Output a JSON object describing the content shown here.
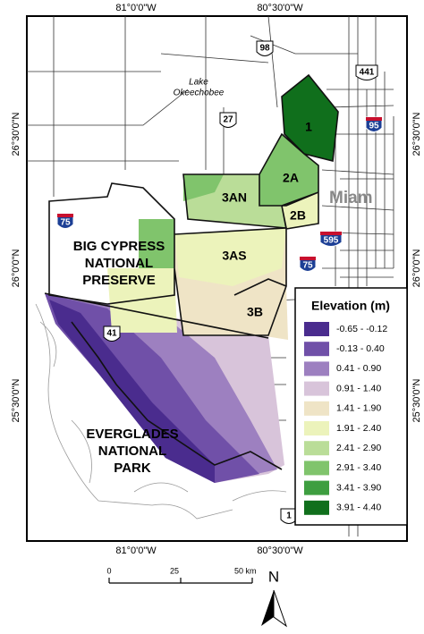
{
  "map": {
    "lon_labels": [
      "81°0'0\"W",
      "80°30'0\"W"
    ],
    "lat_labels": [
      "26°30'0\"N",
      "26°0'0\"N",
      "25°30'0\"N"
    ],
    "lake": [
      "Lake",
      "Okeechobee"
    ],
    "city": "Miam",
    "areas": [
      "1",
      "2A",
      "2B",
      "3AN",
      "3AS",
      "3B"
    ],
    "preserve": [
      "BIG CYPRESS",
      "NATIONAL",
      "PRESERVE"
    ],
    "park": [
      "EVERGLADES",
      "NATIONAL",
      "PARK"
    ],
    "highways": [
      {
        "label": "98",
        "shield": "us"
      },
      {
        "label": "441",
        "shield": "us"
      },
      {
        "label": "27",
        "shield": "us"
      },
      {
        "label": "95",
        "shield": "interstate"
      },
      {
        "label": "75",
        "shield": "interstate"
      },
      {
        "label": "595",
        "shield": "interstate"
      },
      {
        "label": "75",
        "shield": "interstate"
      },
      {
        "label": "41",
        "shield": "us"
      },
      {
        "label": "1",
        "shield": "us"
      }
    ],
    "legend": {
      "title": "Elevation (m)",
      "items": [
        {
          "label": "-0.65 - -0.12",
          "color": "#4a2c8e"
        },
        {
          "label": "-0.13 - 0.40",
          "color": "#7050a8"
        },
        {
          "label": "0.41 - 0.90",
          "color": "#9d80c0"
        },
        {
          "label": "0.91 - 1.40",
          "color": "#d8c4da"
        },
        {
          "label": "1.41 - 1.90",
          "color": "#efe4c6"
        },
        {
          "label": "1.91 - 2.40",
          "color": "#ecf3bb"
        },
        {
          "label": "2.41 - 2.90",
          "color": "#badd98"
        },
        {
          "label": "2.91 - 3.40",
          "color": "#80c46c"
        },
        {
          "label": "3.41 - 3.90",
          "color": "#3e9e40"
        },
        {
          "label": "3.91 - 4.40",
          "color": "#106f1c"
        }
      ]
    },
    "scale_bar": [
      "0",
      "25",
      "50 km"
    ],
    "north": "N"
  }
}
